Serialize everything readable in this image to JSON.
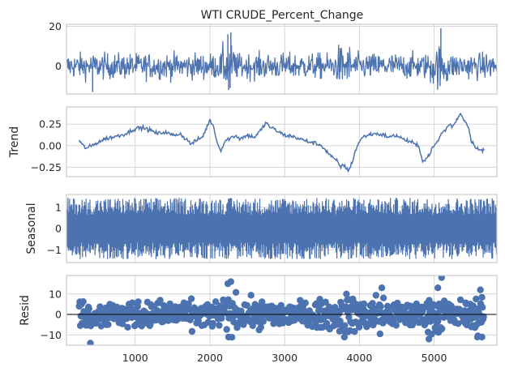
{
  "chart_data": {
    "type": "line",
    "title": "WTI CRUDE_Percent_Change",
    "xlim": [
      80,
      5840
    ],
    "x_ticks": [
      1000,
      2000,
      3000,
      4000,
      5000
    ],
    "x_tick_labels": [
      "1000",
      "2000",
      "3000",
      "4000",
      "5000"
    ],
    "grid": true,
    "colors": {
      "series": "#4c72b0",
      "grid": "#d6d6d6",
      "zero_line": "#000000",
      "spine": "#cccccc"
    },
    "panels": [
      {
        "key": "observed",
        "ylabel": "",
        "type": "line",
        "ylim": [
          -14,
          21
        ],
        "y_ticks": [
          0,
          20
        ],
        "y_tick_labels": [
          "0",
          "20"
        ],
        "series": [
          {
            "x_range": [
              80,
              5840
            ],
            "base_amplitude": 3.2,
            "spikes": [
              [
                2240,
                16
              ],
              [
                2250,
                -12
              ],
              [
                2280,
                17
              ],
              [
                5090,
                19
              ],
              [
                5080,
                -10
              ],
              [
                430,
                -13
              ],
              [
                2270,
                -11
              ]
            ]
          }
        ]
      },
      {
        "key": "trend",
        "ylabel": "Trend",
        "type": "line",
        "ylim": [
          -0.36,
          0.45
        ],
        "y_ticks": [
          -0.25,
          0.0,
          0.25
        ],
        "y_tick_labels": [
          "−0.25",
          "0.00",
          "0.25"
        ],
        "series": [
          {
            "x": [
              250,
              300,
              350,
              420,
              500,
              600,
              700,
              800,
              900,
              1000,
              1100,
              1200,
              1300,
              1400,
              1500,
              1600,
              1700,
              1750,
              1800,
              1900,
              1950,
              2000,
              2050,
              2100,
              2150,
              2200,
              2250,
              2300,
              2350,
              2400,
              2500,
              2600,
              2700,
              2750,
              2800,
              2900,
              3000,
              3100,
              3200,
              3300,
              3400,
              3500,
              3550,
              3600,
              3650,
              3700,
              3750,
              3800,
              3850,
              3900,
              3950,
              4000,
              4050,
              4100,
              4200,
              4300,
              4400,
              4500,
              4600,
              4700,
              4800,
              4850,
              4900,
              5000,
              5050,
              5100,
              5150,
              5200,
              5250,
              5300,
              5350,
              5400,
              5450,
              5500,
              5600,
              5670
            ],
            "y": [
              0.06,
              0.0,
              -0.03,
              0.0,
              0.04,
              0.08,
              0.1,
              0.12,
              0.15,
              0.2,
              0.21,
              0.18,
              0.14,
              0.16,
              0.12,
              0.14,
              0.06,
              0.02,
              0.05,
              0.1,
              0.2,
              0.3,
              0.22,
              0.02,
              -0.05,
              0.05,
              0.08,
              0.1,
              0.12,
              0.08,
              0.12,
              0.1,
              0.2,
              0.27,
              0.22,
              0.17,
              0.12,
              0.11,
              0.08,
              0.05,
              0.03,
              0.0,
              -0.06,
              -0.1,
              -0.15,
              -0.18,
              -0.25,
              -0.22,
              -0.3,
              -0.2,
              -0.05,
              0.05,
              0.1,
              0.12,
              0.14,
              0.13,
              0.1,
              0.12,
              0.07,
              0.04,
              -0.02,
              -0.18,
              -0.15,
              0.0,
              0.05,
              0.15,
              0.18,
              0.25,
              0.22,
              0.3,
              0.38,
              0.3,
              0.25,
              0.05,
              -0.05,
              -0.06
            ]
          }
        ]
      },
      {
        "key": "seasonal",
        "ylabel": "Seasonal",
        "type": "line",
        "ylim": [
          -1.6,
          1.6
        ],
        "y_ticks": [
          -1,
          0,
          1
        ],
        "y_tick_labels": [
          "−1",
          "0",
          "1"
        ],
        "series": [
          {
            "x_range": [
              80,
              5840
            ],
            "amplitude": 1.45
          }
        ]
      },
      {
        "key": "resid",
        "ylabel": "Resid",
        "type": "scatter",
        "ylim": [
          -15,
          19
        ],
        "y_ticks": [
          -10,
          0,
          10
        ],
        "y_tick_labels": [
          "−10",
          "0",
          "10"
        ],
        "zero_line": true,
        "series": [
          {
            "x_range": [
              250,
              5670
            ],
            "base_amplitude": 3.5,
            "outliers": [
              [
                2240,
                15
              ],
              [
                2280,
                16
              ],
              [
                2250,
                -11
              ],
              [
                5100,
                18
              ],
              [
                5050,
                13
              ],
              [
                4300,
                13
              ],
              [
                400,
                -14
              ],
              [
                5580,
                -11
              ],
              [
                5640,
                -11
              ],
              [
                5620,
                12
              ],
              [
                3800,
                -11
              ],
              [
                4930,
                -12
              ]
            ]
          }
        ]
      }
    ]
  }
}
